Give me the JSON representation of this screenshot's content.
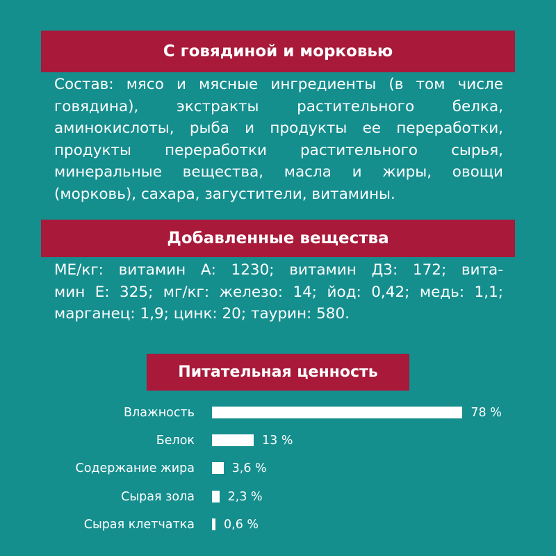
{
  "section1": {
    "title": "С говядиной и морковью",
    "lines": [
      "Состав: мясо и мясные ингредиенты (в том числе",
      "говядина), экстракты растительного белка,",
      "аминокислоты, рыба и продукты ее переработки,",
      "продукты переработки растительного сырья,",
      "минеральные вещества, масла и жиры, овощи",
      "(морковь), сахара, загустители, витамины."
    ]
  },
  "section2": {
    "title": "Добавленные вещества",
    "lines": [
      "МЕ/кг: витамин А: 1230; витамин Д3: 172; вита-",
      "мин Е: 325; мг/кг: железо: 14; йод: 0,42; медь: 1,1;",
      "марганец: 1,9; цинк: 20; таурин: 580."
    ]
  },
  "section3": {
    "title": "Питательная ценность",
    "rows": [
      {
        "label": "Влажность",
        "value": 78,
        "value_text": "78 %"
      },
      {
        "label": "Белок",
        "value": 13,
        "value_text": "13 %"
      },
      {
        "label": "Содержание жира",
        "value": 3.6,
        "value_text": "3,6 %"
      },
      {
        "label": "Сырая зола",
        "value": 2.3,
        "value_text": "2,3 %"
      },
      {
        "label": "Сырая клетчатка",
        "value": 0.6,
        "value_text": "0,6 %"
      }
    ]
  },
  "colors": {
    "background": "#158e8e",
    "banner": "#a8193a",
    "text": "#ffffff"
  }
}
